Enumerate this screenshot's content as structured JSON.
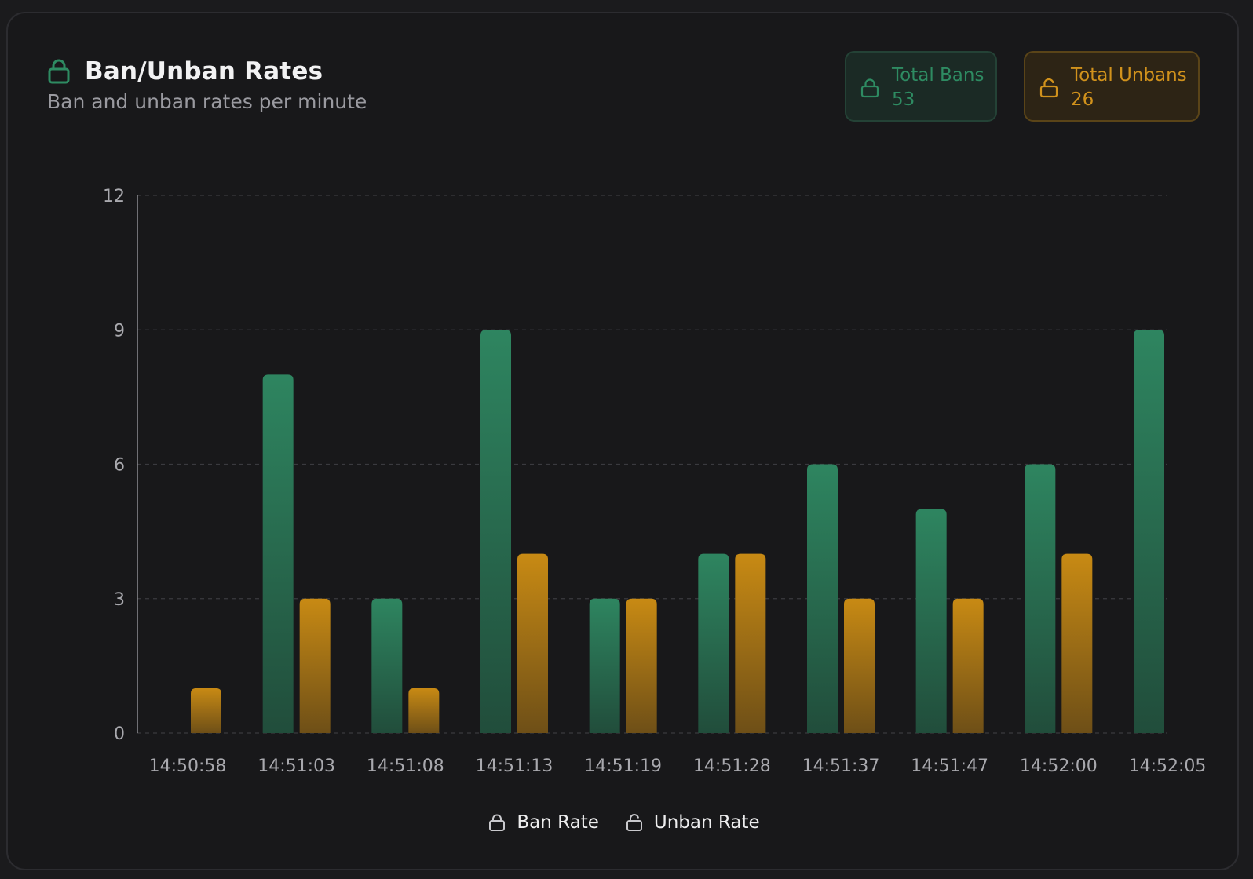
{
  "header": {
    "title": "Ban/Unban Rates",
    "subtitle": "Ban and unban rates per minute",
    "icon": "lock-icon"
  },
  "stats": {
    "bans": {
      "label": "Total Bans",
      "value": "53",
      "icon": "lock-icon",
      "color": "#2e8b62"
    },
    "unbans": {
      "label": "Total Unbans",
      "value": "26",
      "icon": "unlock-icon",
      "color": "#d1921c"
    }
  },
  "legend": {
    "ban": {
      "label": "Ban Rate",
      "icon": "lock-icon"
    },
    "unban": {
      "label": "Unban Rate",
      "icon": "unlock-icon"
    }
  },
  "chart_data": {
    "type": "bar",
    "title": "Ban/Unban Rates",
    "subtitle": "Ban and unban rates per minute",
    "xlabel": "",
    "ylabel": "",
    "categories": [
      "14:50:58",
      "14:51:03",
      "14:51:08",
      "14:51:13",
      "14:51:19",
      "14:51:28",
      "14:51:37",
      "14:51:47",
      "14:52:00",
      "14:52:05"
    ],
    "series": [
      {
        "name": "Ban Rate",
        "values": [
          0,
          8,
          3,
          9,
          3,
          4,
          6,
          5,
          6,
          9
        ],
        "color": "#2e8b62"
      },
      {
        "name": "Unban Rate",
        "values": [
          1,
          3,
          1,
          4,
          3,
          4,
          3,
          3,
          4,
          0
        ],
        "color": "#d1921c"
      }
    ],
    "ylim": [
      0,
      12
    ],
    "yticks": [
      0,
      3,
      6,
      9,
      12
    ],
    "grid": true,
    "legend_position": "bottom"
  }
}
